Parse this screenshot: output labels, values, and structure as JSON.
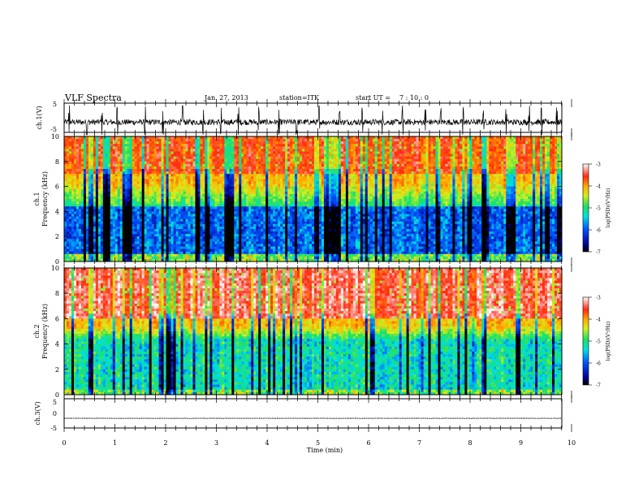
{
  "header": {
    "title": "VLF Spectra",
    "date": "Jan. 27, 2013",
    "station": "station=ITK",
    "start_ut_label": "start UT =",
    "start_ut_value": "7 : 10 : 0"
  },
  "chart_data": [
    {
      "type": "line",
      "panel": "ch1-waveform",
      "ylabel": "ch.1(V)",
      "ylim": [
        -5,
        5
      ],
      "yticks": [
        "5",
        "-5"
      ],
      "xlim": [
        0,
        9.85
      ],
      "baseline": -1.5,
      "noise_amplitude": 1.0,
      "spike_times": [
        0.1,
        0.45,
        0.75,
        1.05,
        1.6,
        1.95,
        2.35,
        2.75,
        3.1,
        3.45,
        3.85,
        4.25,
        4.6,
        5.05,
        5.45,
        5.9,
        6.3,
        6.7,
        7.15,
        7.45,
        7.9,
        8.3,
        8.75,
        9.2,
        9.45,
        9.75
      ]
    },
    {
      "type": "heatmap",
      "panel": "ch1-spectrogram",
      "ylabel": "ch.1\nFrequency (kHz)",
      "ylim": [
        0,
        10
      ],
      "yticks": [
        "0",
        "2",
        "4",
        "6",
        "8",
        "10"
      ],
      "xlim": [
        0,
        9.85
      ],
      "colorbar": {
        "label": "log(PSD)(V²/Hz)",
        "range": [
          -7,
          -3
        ],
        "ticks": [
          "-3",
          "-4",
          "-5",
          "-6",
          "-7"
        ]
      },
      "band_edges_khz": {
        "quiet_band": [
          0.6,
          4.5
        ],
        "green_band_top": 6.5,
        "red_above": 7.0
      },
      "column_values_log_psd": {
        "0-0.5kHz": -5.5,
        "0.5-4.5kHz": -6.5,
        "4.5-7kHz": -5.0,
        "7-10kHz": -3.8
      },
      "intermittent_dark_columns": "frequent"
    },
    {
      "type": "heatmap",
      "panel": "ch2-spectrogram",
      "ylabel": "ch.2\nFrequency (kHz)",
      "ylim": [
        0,
        10
      ],
      "yticks": [
        "0",
        "2",
        "4",
        "6",
        "8",
        "10"
      ],
      "xlim": [
        0,
        9.85
      ],
      "colorbar": {
        "label": "log(PSD)(V²/Hz)",
        "range": [
          -7,
          -3
        ],
        "ticks": [
          "-3",
          "-4",
          "-5",
          "-6",
          "-7"
        ]
      },
      "band_edges_khz": {
        "quiet_band": [
          0.5,
          4.5
        ],
        "green_band_top": 5.5,
        "red_above": 6.0
      },
      "column_values_log_psd": {
        "0-0.5kHz": -4.5,
        "0.5-4.5kHz": -5.8,
        "4.5-6kHz": -4.6,
        "6-10kHz": -3.5
      },
      "intermittent_dark_columns": "frequent"
    },
    {
      "type": "line",
      "panel": "ch3-waveform",
      "ylabel": "ch.3(V)",
      "ylim": [
        -5,
        5
      ],
      "yticks": [
        "5",
        "0",
        "-5"
      ],
      "xlim": [
        0,
        9.85
      ],
      "baseline": -1.7,
      "noise_amplitude": 0.05,
      "xlabel": "Time (min)",
      "xticks": [
        "0",
        "1",
        "2",
        "3",
        "4",
        "5",
        "6",
        "7",
        "8",
        "9",
        "10"
      ],
      "xtick_values": [
        0,
        1,
        2,
        3,
        4,
        5,
        6,
        7,
        8,
        9,
        10
      ]
    }
  ]
}
